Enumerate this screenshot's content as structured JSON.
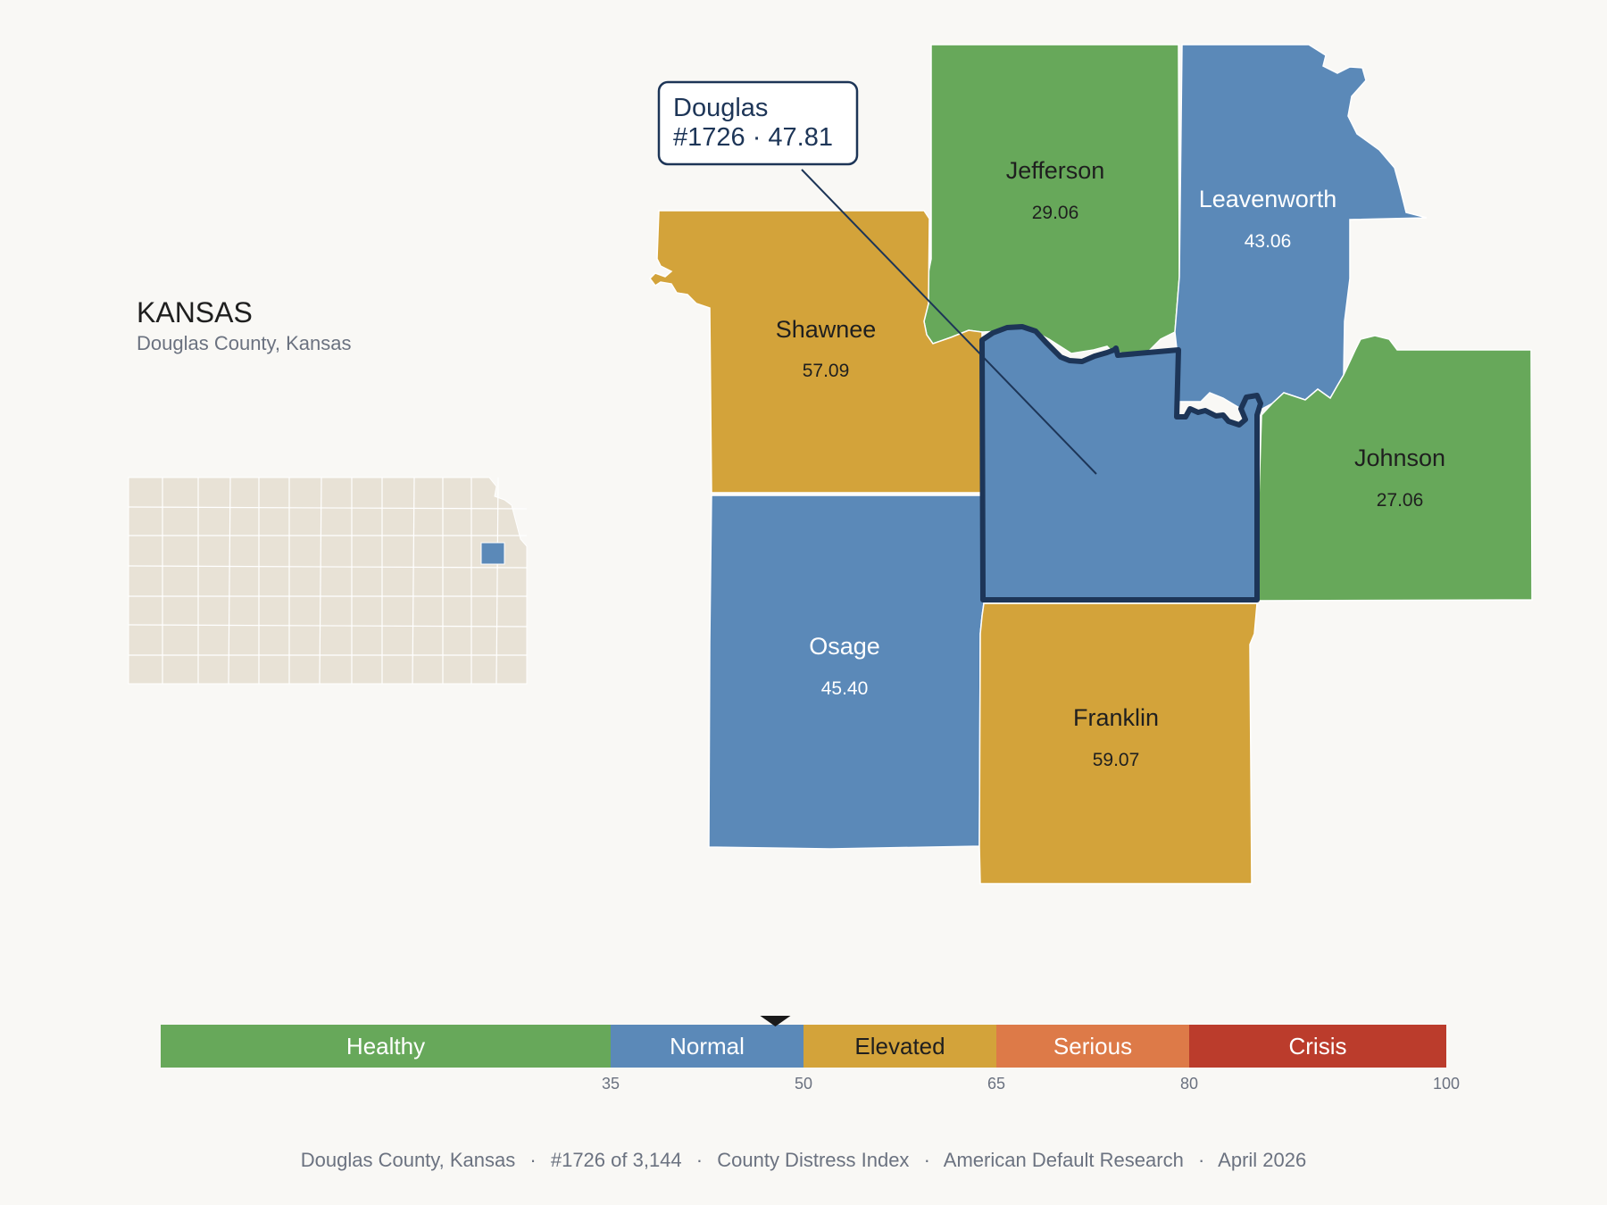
{
  "header": {
    "state_title": "KANSAS",
    "subtitle": "Douglas County, Kansas"
  },
  "callout": {
    "name": "Douglas",
    "rank_score": "#1726 · 47.81"
  },
  "counties": [
    {
      "id": "jefferson",
      "name": "Jefferson",
      "score": "29.06",
      "color": "#67a85a",
      "text_color": "#1f1f1f"
    },
    {
      "id": "leavenworth",
      "name": "Leavenworth",
      "score": "43.06",
      "color": "#5b89b8",
      "text_color": "#ffffff"
    },
    {
      "id": "shawnee",
      "name": "Shawnee",
      "score": "57.09",
      "color": "#d3a33a",
      "text_color": "#1f1f1f"
    },
    {
      "id": "johnson",
      "name": "Johnson",
      "score": "27.06",
      "color": "#67a85a",
      "text_color": "#1f1f1f"
    },
    {
      "id": "osage",
      "name": "Osage",
      "score": "45.40",
      "color": "#5b89b8",
      "text_color": "#ffffff"
    },
    {
      "id": "franklin",
      "name": "Franklin",
      "score": "59.07",
      "color": "#d3a33a",
      "text_color": "#1f1f1f"
    },
    {
      "id": "douglas",
      "name": "",
      "score": "",
      "color": "#5b89b8",
      "text_color": "#ffffff",
      "highlighted": true,
      "outline_color": "#1d3557"
    }
  ],
  "legend": {
    "bands": [
      {
        "label": "Healthy",
        "min": 0,
        "max": 35,
        "color": "#67a85a",
        "text_color": "#ffffff"
      },
      {
        "label": "Normal",
        "min": 35,
        "max": 50,
        "color": "#5b89b8",
        "text_color": "#ffffff"
      },
      {
        "label": "Elevated",
        "min": 50,
        "max": 65,
        "color": "#d3a33a",
        "text_color": "#1f1f1f"
      },
      {
        "label": "Serious",
        "min": 65,
        "max": 80,
        "color": "#dd7a48",
        "text_color": "#ffffff"
      },
      {
        "label": "Crisis",
        "min": 80,
        "max": 100,
        "color": "#bb3c2c",
        "text_color": "#ffffff"
      }
    ],
    "ticks": [
      "35",
      "50",
      "65",
      "80",
      "100"
    ],
    "marker_value": 47.81
  },
  "footer": {
    "location": "Douglas County, Kansas",
    "rank": "#1726 of 3,144",
    "index": "County Distress Index",
    "source": "American Default Research",
    "date": "April 2026",
    "separator": "·"
  },
  "colors": {
    "background": "#f9f8f5",
    "state_fill": "#e8e2d6",
    "state_highlight": "#5b89b8",
    "outline": "#1d3557"
  }
}
